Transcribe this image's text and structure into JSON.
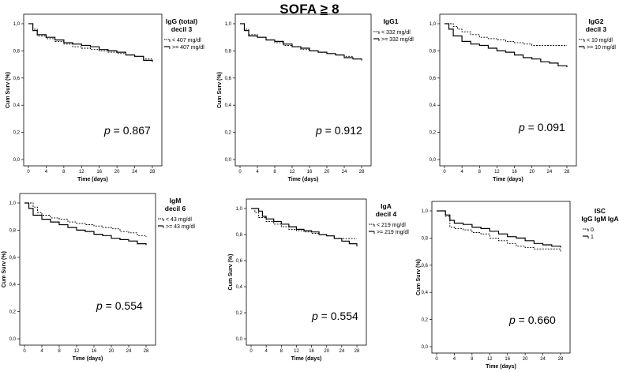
{
  "figure": {
    "title_prefix": "SOFA",
    "title_ge": "≥",
    "title_value": "8"
  },
  "chart_data": [
    {
      "type": "line",
      "step": true,
      "title": "",
      "legend_title": [
        "IgG (total)",
        "decil 3"
      ],
      "xlabel": "Time (days)",
      "ylabel": "Cum Surv (%)",
      "xlim": [
        0,
        28
      ],
      "ylim": [
        0,
        1
      ],
      "xticks": [
        0,
        4,
        8,
        12,
        16,
        20,
        24,
        28
      ],
      "yticks": [
        "0,0",
        "0,2",
        "0,4",
        "0,6",
        "0,8",
        "1,0"
      ],
      "pvalue_prefix": "p",
      "pvalue": "= 0.867",
      "series": [
        {
          "name": "< 407 mg/dl",
          "style": "dashed",
          "x": [
            0,
            1,
            2,
            4,
            6,
            8,
            10,
            12,
            14,
            16,
            18,
            20,
            22,
            24,
            26,
            28
          ],
          "y": [
            1.0,
            0.96,
            0.91,
            0.89,
            0.87,
            0.85,
            0.83,
            0.82,
            0.81,
            0.8,
            0.79,
            0.78,
            0.77,
            0.76,
            0.74,
            0.73
          ]
        },
        {
          "name": ">= 407 mg/dl",
          "style": "solid",
          "x": [
            0,
            1,
            2,
            4,
            6,
            8,
            10,
            12,
            14,
            16,
            18,
            20,
            22,
            24,
            26,
            28
          ],
          "y": [
            1.0,
            0.95,
            0.92,
            0.9,
            0.88,
            0.86,
            0.85,
            0.84,
            0.83,
            0.81,
            0.8,
            0.79,
            0.77,
            0.76,
            0.73,
            0.72
          ]
        }
      ]
    },
    {
      "type": "line",
      "step": true,
      "title": "",
      "legend_title": [
        "IgG1"
      ],
      "xlabel": "Time (days)",
      "ylabel": "Cum Surv (%)",
      "xlim": [
        0,
        28
      ],
      "ylim": [
        0,
        1
      ],
      "xticks": [
        0,
        4,
        8,
        12,
        16,
        20,
        24,
        28
      ],
      "yticks": [
        "0,0",
        "0,2",
        "0,4",
        "0,6",
        "0,8",
        "1,0"
      ],
      "pvalue_prefix": "p",
      "pvalue": "= 0.912",
      "series": [
        {
          "name": "< 332 mg/dl",
          "style": "dashed",
          "x": [
            0,
            1,
            2,
            4,
            6,
            8,
            10,
            12,
            14,
            16,
            18,
            20,
            22,
            24,
            26,
            28
          ],
          "y": [
            1.0,
            0.96,
            0.92,
            0.9,
            0.88,
            0.86,
            0.84,
            0.83,
            0.81,
            0.8,
            0.79,
            0.78,
            0.77,
            0.76,
            0.74,
            0.73
          ]
        },
        {
          "name": ">= 332 mg/dl",
          "style": "solid",
          "x": [
            0,
            1,
            2,
            4,
            6,
            8,
            10,
            12,
            14,
            16,
            18,
            20,
            22,
            24,
            26,
            28
          ],
          "y": [
            1.0,
            0.95,
            0.91,
            0.9,
            0.88,
            0.87,
            0.85,
            0.83,
            0.82,
            0.8,
            0.79,
            0.78,
            0.77,
            0.75,
            0.74,
            0.73
          ]
        }
      ]
    },
    {
      "type": "line",
      "step": true,
      "title": "",
      "legend_title": [
        "IgG2",
        "decil 3"
      ],
      "xlabel": "Time (days)",
      "ylabel": "",
      "xlim": [
        0,
        28
      ],
      "ylim": [
        0,
        1
      ],
      "xticks": [
        0,
        4,
        8,
        12,
        16,
        20,
        24,
        28
      ],
      "yticks": [
        "0,0",
        "0,2",
        "0,4",
        "0,6",
        "0,8",
        "1,0"
      ],
      "pvalue_prefix": "p",
      "pvalue": "= 0.091",
      "series": [
        {
          "name": "< 10 mg/dl",
          "style": "dashed",
          "x": [
            0,
            2,
            3,
            4,
            6,
            8,
            10,
            12,
            14,
            16,
            18,
            20,
            24,
            28
          ],
          "y": [
            1.0,
            0.98,
            0.96,
            0.94,
            0.92,
            0.9,
            0.89,
            0.88,
            0.87,
            0.86,
            0.85,
            0.84,
            0.84,
            0.84
          ]
        },
        {
          "name": ">= 10 mg/dl",
          "style": "solid",
          "x": [
            0,
            1,
            2,
            4,
            6,
            8,
            10,
            12,
            14,
            16,
            18,
            20,
            22,
            24,
            26,
            28
          ],
          "y": [
            1.0,
            0.96,
            0.91,
            0.87,
            0.85,
            0.84,
            0.82,
            0.8,
            0.79,
            0.77,
            0.75,
            0.74,
            0.72,
            0.71,
            0.69,
            0.68
          ]
        }
      ]
    },
    {
      "type": "line",
      "step": true,
      "title": "",
      "legend_title": [
        "IgM",
        "decil 6"
      ],
      "xlabel": "Time (days)",
      "ylabel": "Cum Surv (%)",
      "xlim": [
        0,
        28
      ],
      "ylim": [
        0,
        1
      ],
      "xticks": [
        0,
        4,
        8,
        12,
        16,
        20,
        24,
        28
      ],
      "yticks": [
        "0,0",
        "0,2",
        "0,4",
        "0,6",
        "0,8",
        "1,0"
      ],
      "pvalue_prefix": "p",
      "pvalue": "= 0.554",
      "series": [
        {
          "name": "< 43 mg/dl",
          "style": "dashed",
          "x": [
            0,
            2,
            3,
            4,
            6,
            8,
            10,
            12,
            14,
            16,
            18,
            20,
            22,
            24,
            26,
            28
          ],
          "y": [
            1.0,
            0.97,
            0.93,
            0.91,
            0.89,
            0.88,
            0.86,
            0.85,
            0.84,
            0.83,
            0.82,
            0.81,
            0.79,
            0.78,
            0.76,
            0.75
          ]
        },
        {
          "name": ">= 43 mg/dl",
          "style": "solid",
          "x": [
            0,
            1,
            2,
            4,
            6,
            8,
            10,
            12,
            14,
            16,
            18,
            20,
            22,
            24,
            26,
            28
          ],
          "y": [
            1.0,
            0.96,
            0.91,
            0.88,
            0.86,
            0.84,
            0.82,
            0.8,
            0.79,
            0.77,
            0.76,
            0.74,
            0.73,
            0.72,
            0.7,
            0.69
          ]
        }
      ]
    },
    {
      "type": "line",
      "step": true,
      "title": "",
      "legend_title": [
        "IgA",
        "decil 4"
      ],
      "xlabel": "Time (days)",
      "ylabel": "Cum Surv (%)",
      "xlim": [
        0,
        28
      ],
      "ylim": [
        0,
        1
      ],
      "xticks": [
        0,
        4,
        8,
        12,
        16,
        20,
        24,
        28
      ],
      "yticks": [
        "0,0",
        "0,2",
        "0,4",
        "0,6",
        "0,8",
        "1,0"
      ],
      "pvalue_prefix": "p",
      "pvalue": "= 0.554",
      "series": [
        {
          "name": "< 219 mg/dl",
          "style": "dashed",
          "x": [
            0,
            1,
            2,
            4,
            6,
            8,
            10,
            12,
            14,
            16,
            18,
            20,
            22,
            28
          ],
          "y": [
            1.0,
            0.97,
            0.93,
            0.9,
            0.88,
            0.86,
            0.84,
            0.83,
            0.82,
            0.81,
            0.8,
            0.79,
            0.77,
            0.77
          ]
        },
        {
          "name": ">= 219 mg/dl",
          "style": "solid",
          "x": [
            0,
            2,
            3,
            4,
            6,
            8,
            10,
            12,
            14,
            16,
            18,
            20,
            22,
            24,
            26,
            28
          ],
          "y": [
            1.0,
            0.98,
            0.94,
            0.92,
            0.9,
            0.88,
            0.86,
            0.84,
            0.83,
            0.82,
            0.8,
            0.79,
            0.77,
            0.75,
            0.73,
            0.71
          ]
        }
      ]
    },
    {
      "type": "line",
      "step": true,
      "title": "",
      "legend_title": [
        "ISC",
        "IgG IgM IgA"
      ],
      "xlabel": "Time (days)",
      "ylabel": "Cum Surv (%)",
      "xlim": [
        0,
        28
      ],
      "ylim": [
        0,
        1
      ],
      "xticks": [
        0,
        4,
        8,
        12,
        16,
        20,
        24,
        28
      ],
      "yticks": [
        "0,0",
        "0,2",
        "0,4",
        "0,6",
        "0,8",
        "1,0"
      ],
      "pvalue_prefix": "p",
      "pvalue": "= 0.660",
      "series": [
        {
          "name": "0",
          "style": "dashed",
          "x": [
            0,
            2,
            3,
            4,
            6,
            8,
            10,
            12,
            14,
            16,
            18,
            20,
            22,
            24,
            26,
            28
          ],
          "y": [
            1.0,
            0.96,
            0.88,
            0.87,
            0.86,
            0.84,
            0.83,
            0.8,
            0.78,
            0.76,
            0.74,
            0.73,
            0.72,
            0.72,
            0.72,
            0.7
          ]
        },
        {
          "name": "1",
          "style": "solid",
          "x": [
            0,
            2,
            3,
            4,
            6,
            8,
            10,
            12,
            14,
            16,
            18,
            20,
            22,
            24,
            26,
            28
          ],
          "y": [
            1.0,
            0.97,
            0.93,
            0.91,
            0.9,
            0.88,
            0.87,
            0.85,
            0.83,
            0.81,
            0.8,
            0.78,
            0.76,
            0.75,
            0.74,
            0.73
          ]
        }
      ]
    }
  ]
}
